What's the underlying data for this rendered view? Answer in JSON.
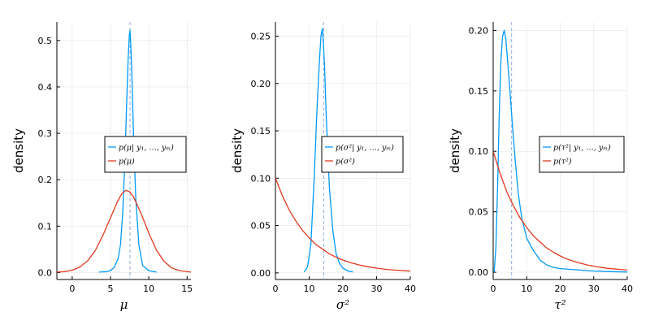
{
  "chart_data": [
    {
      "type": "line",
      "title": "",
      "xlabel": "μ",
      "ylabel": "density",
      "xlim": [
        -2,
        15.5
      ],
      "ylim": [
        -0.015,
        0.54
      ],
      "xticks": [
        0,
        5,
        10,
        15
      ],
      "xtick_labels": [
        "0",
        "5",
        "10",
        "15"
      ],
      "yticks": [
        0,
        0.1,
        0.2,
        0.3,
        0.4,
        0.5
      ],
      "ytick_labels": [
        "0.0",
        "0.1",
        "0.2",
        "0.3",
        "0.4",
        "0.5"
      ],
      "grid": true,
      "legend_position": "right-middle",
      "vline": 7.55,
      "series": [
        {
          "name": "p(μ | y1, …, ym)",
          "color": "#009af9",
          "x": [
            3.5,
            4.5,
            5.0,
            5.5,
            6.0,
            6.3,
            6.6,
            6.9,
            7.1,
            7.3,
            7.45,
            7.55,
            7.65,
            7.8,
            8.0,
            8.3,
            8.7,
            9.2,
            10.0,
            11.0
          ],
          "y": [
            0.001,
            0.002,
            0.004,
            0.012,
            0.03,
            0.06,
            0.13,
            0.25,
            0.36,
            0.46,
            0.51,
            0.522,
            0.49,
            0.42,
            0.3,
            0.16,
            0.06,
            0.015,
            0.004,
            0.001
          ]
        },
        {
          "name": "p(μ)",
          "color": "#e26f46",
          "x": [
            -2,
            -1,
            0,
            1,
            2,
            3,
            4,
            5,
            6,
            6.5,
            7,
            7.5,
            8,
            9,
            10,
            11,
            12,
            13,
            14,
            15.5
          ],
          "y": [
            0.001,
            0.002,
            0.005,
            0.012,
            0.025,
            0.047,
            0.08,
            0.118,
            0.156,
            0.17,
            0.177,
            0.174,
            0.163,
            0.127,
            0.085,
            0.048,
            0.024,
            0.01,
            0.004,
            0.001
          ]
        }
      ],
      "legend": [
        "p(μ| y1, …, ym)",
        "p(μ)"
      ]
    },
    {
      "type": "line",
      "title": "",
      "xlabel": "σ²",
      "ylabel": "density",
      "xlim": [
        0,
        40
      ],
      "ylim": [
        -0.007,
        0.265
      ],
      "xticks": [
        0,
        10,
        20,
        30,
        40
      ],
      "xtick_labels": [
        "0",
        "10",
        "20",
        "30",
        "40"
      ],
      "yticks": [
        0,
        0.05,
        0.1,
        0.15,
        0.2,
        0.25
      ],
      "ytick_labels": [
        "0.00",
        "0.05",
        "0.10",
        "0.15",
        "0.20",
        "0.25"
      ],
      "grid": true,
      "legend_position": "right-middle",
      "vline": 14.3,
      "series": [
        {
          "name": "p(σ² | y1, …, ym)",
          "color": "#009af9",
          "x": [
            8.5,
            9.5,
            10.5,
            11.5,
            12.3,
            13.0,
            13.5,
            13.9,
            14.2,
            14.6,
            15.0,
            15.5,
            16.0,
            17.0,
            18.0,
            19.0,
            20.0,
            21.5,
            23.0
          ],
          "y": [
            0.001,
            0.006,
            0.03,
            0.1,
            0.17,
            0.22,
            0.25,
            0.258,
            0.245,
            0.215,
            0.17,
            0.13,
            0.09,
            0.045,
            0.02,
            0.01,
            0.005,
            0.002,
            0.001
          ]
        },
        {
          "name": "p(σ²)",
          "color": "#e26f46",
          "x": [
            0,
            2,
            4,
            6,
            8,
            10,
            12,
            14,
            16,
            18,
            20,
            22,
            25,
            28,
            31,
            34,
            37,
            40
          ],
          "y": [
            0.1,
            0.082,
            0.067,
            0.055,
            0.045,
            0.037,
            0.03,
            0.025,
            0.02,
            0.0165,
            0.0135,
            0.011,
            0.0082,
            0.0061,
            0.0045,
            0.0033,
            0.0025,
            0.0018
          ]
        }
      ],
      "legend": [
        "p(σ²| y1, …, ym)",
        "p(σ²)"
      ]
    },
    {
      "type": "line",
      "title": "",
      "xlabel": "τ²",
      "ylabel": "density",
      "xlim": [
        0,
        40
      ],
      "ylim": [
        -0.006,
        0.207
      ],
      "xticks": [
        0,
        10,
        20,
        30,
        40
      ],
      "xtick_labels": [
        "0",
        "10",
        "20",
        "30",
        "40"
      ],
      "yticks": [
        0,
        0.05,
        0.1,
        0.15,
        0.2
      ],
      "ytick_labels": [
        "0.00",
        "0.05",
        "0.10",
        "0.15",
        "0.20"
      ],
      "grid": true,
      "legend_position": "right-middle",
      "vline": 5.5,
      "series": [
        {
          "name": "p(τ² | y1, …, ym)",
          "color": "#009af9",
          "x": [
            0.3,
            0.8,
            1.3,
            1.8,
            2.3,
            2.8,
            3.3,
            3.8,
            4.3,
            5.0,
            5.8,
            6.5,
            7.5,
            8.5,
            10,
            12,
            14,
            16,
            18,
            20,
            25,
            30,
            35,
            40
          ],
          "y": [
            0.0,
            0.02,
            0.07,
            0.13,
            0.175,
            0.195,
            0.2,
            0.192,
            0.175,
            0.15,
            0.12,
            0.095,
            0.065,
            0.045,
            0.028,
            0.018,
            0.01,
            0.006,
            0.004,
            0.003,
            0.002,
            0.001,
            0.0005,
            0.0002
          ]
        },
        {
          "name": "p(τ²)",
          "color": "#e26f46",
          "x": [
            0,
            2,
            4,
            6,
            8,
            10,
            12,
            14,
            16,
            18,
            20,
            22,
            25,
            28,
            31,
            34,
            37,
            40
          ],
          "y": [
            0.1,
            0.082,
            0.067,
            0.055,
            0.045,
            0.037,
            0.03,
            0.025,
            0.02,
            0.0165,
            0.0135,
            0.011,
            0.0082,
            0.0061,
            0.0045,
            0.0033,
            0.0025,
            0.0018
          ]
        }
      ],
      "legend": [
        "p(τ²| y1, …, ym)",
        "p(τ²)"
      ]
    }
  ]
}
